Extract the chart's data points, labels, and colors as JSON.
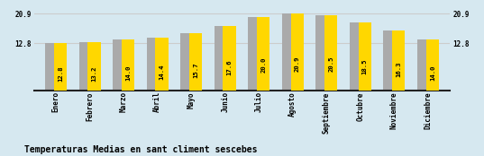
{
  "categories": [
    "Enero",
    "Febrero",
    "Marzo",
    "Abril",
    "Mayo",
    "Junio",
    "Julio",
    "Agosto",
    "Septiembre",
    "Octubre",
    "Noviembre",
    "Diciembre"
  ],
  "values": [
    12.8,
    13.2,
    14.0,
    14.4,
    15.7,
    17.6,
    20.0,
    20.9,
    20.5,
    18.5,
    16.3,
    14.0
  ],
  "bar_color_gold": "#FFD700",
  "bar_color_gray": "#AAAAAA",
  "background_color": "#D6E8F0",
  "title": "Temperaturas Medias en sant climent sescebes",
  "ymin": 0,
  "ymax": 22.5,
  "yticks": [
    12.8,
    20.9
  ],
  "value_label_fontsize": 5.2,
  "title_fontsize": 7,
  "axis_label_fontsize": 5.5,
  "grid_color": "#CCCCCC",
  "spine_color": "#222222"
}
